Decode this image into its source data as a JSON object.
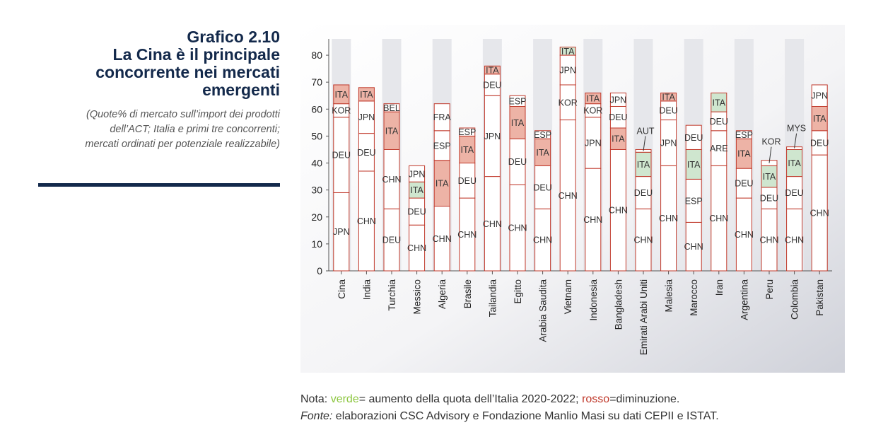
{
  "header": {
    "title_lines": [
      "Grafico 2.10",
      "La Cina è il principale",
      "concorrente nei mercati",
      "emergenti"
    ],
    "subtitle_lines": [
      "(Quote% di mercato sull’import dei prodotti",
      "dell’ACT; Italia e primi tre concorrenti;",
      "mercati ordinati per potenziale realizzabile)"
    ]
  },
  "colors": {
    "title": "#13294b",
    "rule": "#13294b",
    "increase": "#cfe6cf",
    "decrease": "#edb3a6",
    "neutral": "#ffffff",
    "bar_border": "#c0392b",
    "column_band": "#e6e7eb",
    "note_green": "#8cc63f",
    "note_red": "#c0392b"
  },
  "notes": {
    "line1_prefix": "Nota: ",
    "green_word": "verde",
    "line1_middle": "= aumento della quota dell’Italia 2020-2022; ",
    "red_word": "rosso",
    "line1_suffix": "=diminuzione.",
    "fonte_label": "Fonte:",
    "fonte_text": " elaborazioni CSC Advisory e Fondazione Manlio Masi su dati CEPII e ISTAT."
  },
  "chart_data": {
    "type": "bar",
    "stacked": true,
    "ylim": [
      0,
      85
    ],
    "yticks": [
      0,
      10,
      20,
      30,
      40,
      50,
      60,
      70,
      80
    ],
    "grid": false,
    "categories": [
      "Cina",
      "India",
      "Turchia",
      "Messico",
      "Algeria",
      "Brasile",
      "Tailandia",
      "Egitto",
      "Arabia Saudita",
      "Vietnam",
      "Indonesia",
      "Bangladesh",
      "Emirati Arabi Uniti",
      "Malesia",
      "Marocco",
      "Iran",
      "Argentina",
      "Peru",
      "Colombia",
      "Pakistan"
    ],
    "stacks": [
      [
        {
          "label": "JPN",
          "value": 29,
          "ita": ""
        },
        {
          "label": "DEU",
          "value": 28,
          "ita": ""
        },
        {
          "label": "KOR",
          "value": 5,
          "ita": ""
        },
        {
          "label": "ITA",
          "value": 7,
          "ita": "down"
        }
      ],
      [
        {
          "label": "CHN",
          "value": 37,
          "ita": ""
        },
        {
          "label": "DEU",
          "value": 14,
          "ita": ""
        },
        {
          "label": "JPN",
          "value": 12,
          "ita": ""
        },
        {
          "label": "ITA",
          "value": 5,
          "ita": "down"
        }
      ],
      [
        {
          "label": "DEU",
          "value": 23,
          "ita": ""
        },
        {
          "label": "CHN",
          "value": 22,
          "ita": ""
        },
        {
          "label": "ITA",
          "value": 14,
          "ita": "down"
        },
        {
          "label": "BEL",
          "value": 3,
          "ita": ""
        }
      ],
      [
        {
          "label": "CHN",
          "value": 17,
          "ita": ""
        },
        {
          "label": "DEU",
          "value": 10,
          "ita": ""
        },
        {
          "label": "ITA",
          "value": 6,
          "ita": "up"
        },
        {
          "label": "JPN",
          "value": 6,
          "ita": ""
        }
      ],
      [
        {
          "label": "CHN",
          "value": 24,
          "ita": ""
        },
        {
          "label": "ITA",
          "value": 17,
          "ita": "down"
        },
        {
          "label": "ESP",
          "value": 11,
          "ita": ""
        },
        {
          "label": "FRA",
          "value": 10,
          "ita": ""
        }
      ],
      [
        {
          "label": "CHN",
          "value": 27,
          "ita": ""
        },
        {
          "label": "DEU",
          "value": 13,
          "ita": ""
        },
        {
          "label": "ITA",
          "value": 10,
          "ita": "down"
        },
        {
          "label": "ESP",
          "value": 3,
          "ita": ""
        }
      ],
      [
        {
          "label": "CHN",
          "value": 35,
          "ita": ""
        },
        {
          "label": "JPN",
          "value": 30,
          "ita": ""
        },
        {
          "label": "DEU",
          "value": 8,
          "ita": ""
        },
        {
          "label": "ITA",
          "value": 3,
          "ita": "down"
        }
      ],
      [
        {
          "label": "CHN",
          "value": 32,
          "ita": ""
        },
        {
          "label": "DEU",
          "value": 17,
          "ita": ""
        },
        {
          "label": "ITA",
          "value": 12,
          "ita": "down"
        },
        {
          "label": "ESP",
          "value": 4,
          "ita": ""
        }
      ],
      [
        {
          "label": "CHN",
          "value": 23,
          "ita": ""
        },
        {
          "label": "DEU",
          "value": 16,
          "ita": ""
        },
        {
          "label": "ITA",
          "value": 10,
          "ita": "down"
        },
        {
          "label": "ESP",
          "value": 3,
          "ita": ""
        }
      ],
      [
        {
          "label": "CHN",
          "value": 56,
          "ita": ""
        },
        {
          "label": "KOR",
          "value": 13,
          "ita": ""
        },
        {
          "label": "JPN",
          "value": 11,
          "ita": ""
        },
        {
          "label": "ITA",
          "value": 3,
          "ita": "up"
        }
      ],
      [
        {
          "label": "CHN",
          "value": 38,
          "ita": ""
        },
        {
          "label": "JPN",
          "value": 19,
          "ita": ""
        },
        {
          "label": "KOR",
          "value": 5,
          "ita": ""
        },
        {
          "label": "ITA",
          "value": 4,
          "ita": "down"
        }
      ],
      [
        {
          "label": "CHN",
          "value": 45,
          "ita": ""
        },
        {
          "label": "ITA",
          "value": 8,
          "ita": "down"
        },
        {
          "label": "DEU",
          "value": 8,
          "ita": ""
        },
        {
          "label": "JPN",
          "value": 5,
          "ita": ""
        }
      ],
      [
        {
          "label": "CHN",
          "value": 23,
          "ita": ""
        },
        {
          "label": "DEU",
          "value": 12,
          "ita": ""
        },
        {
          "label": "ITA",
          "value": 9,
          "ita": "up"
        },
        {
          "label": "AUT",
          "value": 1,
          "ita": ""
        }
      ],
      [
        {
          "label": "CHN",
          "value": 39,
          "ita": ""
        },
        {
          "label": "JPN",
          "value": 17,
          "ita": ""
        },
        {
          "label": "DEU",
          "value": 7,
          "ita": ""
        },
        {
          "label": "ITA",
          "value": 3,
          "ita": "down"
        }
      ],
      [
        {
          "label": "CHN",
          "value": 18,
          "ita": ""
        },
        {
          "label": "ESP",
          "value": 16,
          "ita": ""
        },
        {
          "label": "ITA",
          "value": 11,
          "ita": "up"
        },
        {
          "label": "DEU",
          "value": 9,
          "ita": ""
        }
      ],
      [
        {
          "label": "CHN",
          "value": 39,
          "ita": ""
        },
        {
          "label": "ARE",
          "value": 13,
          "ita": ""
        },
        {
          "label": "DEU",
          "value": 7,
          "ita": ""
        },
        {
          "label": "ITA",
          "value": 7,
          "ita": "up"
        }
      ],
      [
        {
          "label": "CHN",
          "value": 27,
          "ita": ""
        },
        {
          "label": "DEU",
          "value": 11,
          "ita": ""
        },
        {
          "label": "ITA",
          "value": 11,
          "ita": "down"
        },
        {
          "label": "ESP",
          "value": 3,
          "ita": ""
        }
      ],
      [
        {
          "label": "CHN",
          "value": 23,
          "ita": ""
        },
        {
          "label": "DEU",
          "value": 8,
          "ita": ""
        },
        {
          "label": "ITA",
          "value": 8,
          "ita": "up"
        },
        {
          "label": "KOR",
          "value": 2,
          "ita": ""
        }
      ],
      [
        {
          "label": "CHN",
          "value": 23,
          "ita": ""
        },
        {
          "label": "DEU",
          "value": 12,
          "ita": ""
        },
        {
          "label": "ITA",
          "value": 10,
          "ita": "up"
        },
        {
          "label": "MYS",
          "value": 1,
          "ita": ""
        }
      ],
      [
        {
          "label": "CHN",
          "value": 43,
          "ita": ""
        },
        {
          "label": "DEU",
          "value": 9,
          "ita": ""
        },
        {
          "label": "ITA",
          "value": 9,
          "ita": "down"
        },
        {
          "label": "JPN",
          "value": 8,
          "ita": ""
        }
      ]
    ]
  }
}
